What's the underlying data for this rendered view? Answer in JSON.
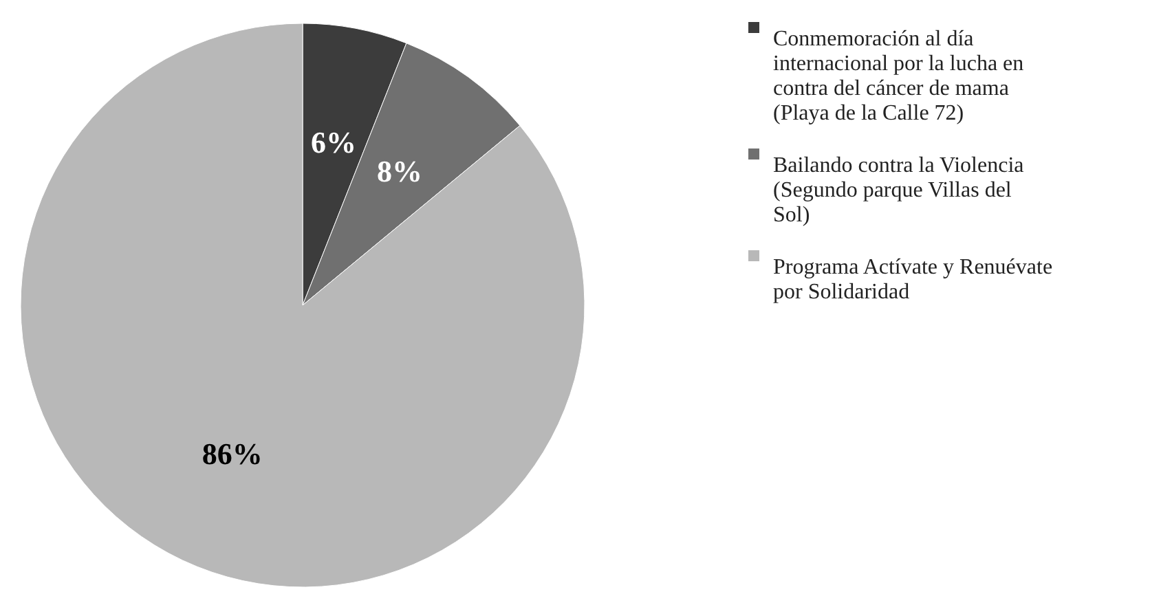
{
  "chart_data": {
    "type": "pie",
    "categories": [
      "Conmemoración al día internacional por la lucha en contra del cáncer de mama (Playa de la Calle 72)",
      "Bailando contra la Violencia (Segundo parque Villas del Sol)",
      "Programa Actívate y Renuévate por Solidaridad"
    ],
    "values": [
      6,
      8,
      86
    ],
    "colors": [
      "#3c3c3c",
      "#707070",
      "#b8b8b8"
    ],
    "value_labels": [
      "6%",
      "8%",
      "86%"
    ],
    "legend": "right"
  }
}
